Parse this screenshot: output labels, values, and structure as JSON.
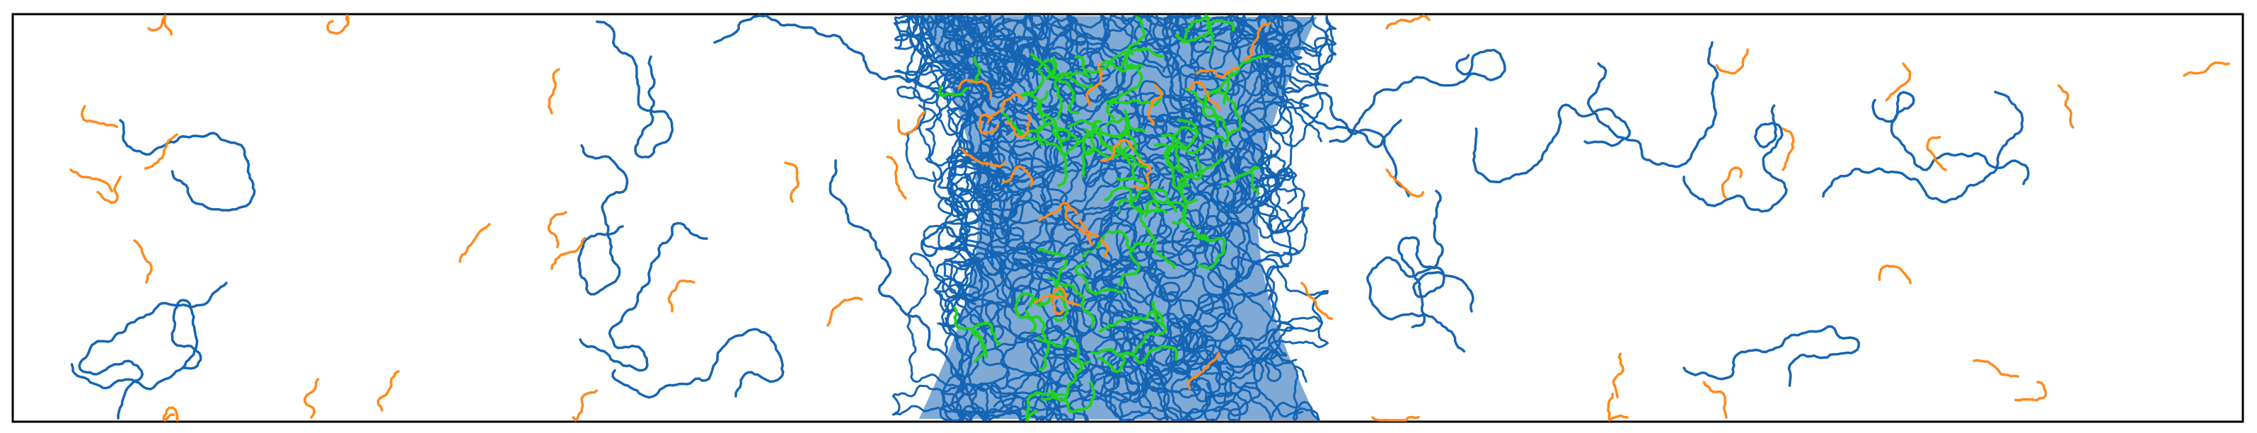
{
  "colors": {
    "frame": "#000000",
    "background": "#ffffff",
    "polymer_long": "#1565b4",
    "polymer_short": "#ff8a1c",
    "green_chains": "#1fd21f"
  },
  "figure": {
    "kind": "polymer-chain simulation snapshot (coexisting dense slab and dilute phase)"
  }
}
